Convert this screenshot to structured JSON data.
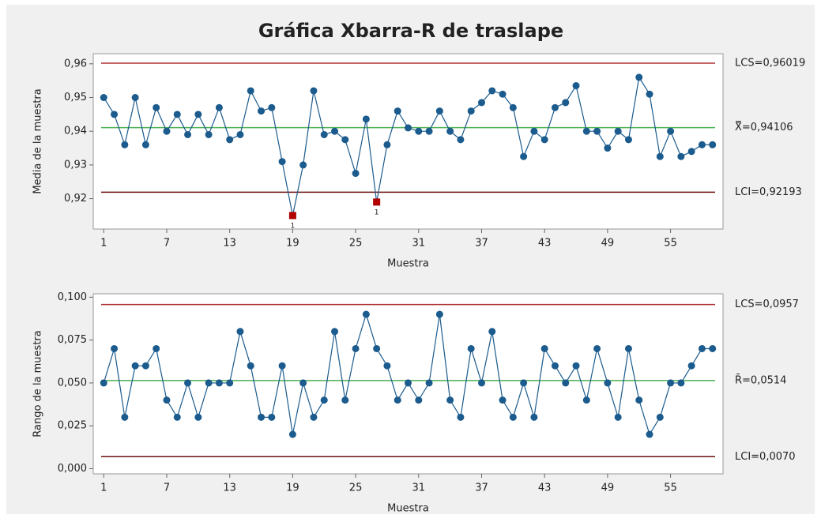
{
  "title": "Gráfica Xbarra-R de traslape",
  "chart_data": [
    {
      "type": "line",
      "ylabel": "Media de la muestra",
      "xlabel": "Muestra",
      "color": "#1b5b8d",
      "x": [
        1,
        2,
        3,
        4,
        5,
        6,
        7,
        8,
        9,
        10,
        11,
        12,
        13,
        14,
        15,
        16,
        17,
        18,
        19,
        20,
        21,
        22,
        23,
        24,
        25,
        26,
        27,
        28,
        29,
        30,
        31,
        32,
        33,
        34,
        35,
        36,
        37,
        38,
        39,
        40,
        41,
        42,
        43,
        44,
        45,
        46,
        47,
        48,
        49,
        50,
        51,
        52,
        53,
        54,
        55,
        56,
        57,
        58,
        59
      ],
      "values": [
        0.95,
        0.945,
        0.936,
        0.95,
        0.936,
        0.947,
        0.94,
        0.945,
        0.939,
        0.945,
        0.939,
        0.947,
        0.9375,
        0.939,
        0.952,
        0.946,
        0.947,
        0.931,
        0.915,
        0.93,
        0.952,
        0.939,
        0.94,
        0.9375,
        0.9275,
        0.9436,
        0.919,
        0.936,
        0.946,
        0.941,
        0.94,
        0.94,
        0.946,
        0.94,
        0.9375,
        0.946,
        0.9485,
        0.952,
        0.951,
        0.947,
        0.9325,
        0.94,
        0.9375,
        0.947,
        0.9485,
        0.9535,
        0.94,
        0.94,
        0.935,
        0.94,
        0.9375,
        0.956,
        0.951,
        0.9325,
        0.94,
        0.9325,
        0.934,
        0.936,
        0.936
      ],
      "flags": [
        {
          "x": 19,
          "label": "1"
        },
        {
          "x": 27,
          "label": "1"
        }
      ],
      "flag_color": "#b00000",
      "xlim": [
        0,
        60
      ],
      "xticks": [
        1,
        7,
        13,
        19,
        25,
        31,
        37,
        43,
        49,
        55
      ],
      "ylim": [
        0.911,
        0.963
      ],
      "yticks": [
        {
          "value": 0.92,
          "label": "0,92"
        },
        {
          "value": 0.93,
          "label": "0,93"
        },
        {
          "value": 0.94,
          "label": "0,94"
        },
        {
          "value": 0.95,
          "label": "0,95"
        },
        {
          "value": 0.96,
          "label": "0,96"
        }
      ],
      "limits": [
        {
          "value": 0.96019,
          "label": "LCS=0,96019",
          "color": "#b03030"
        },
        {
          "value": 0.94106,
          "label": "X̿=0,94106",
          "color": "#4caf50"
        },
        {
          "value": 0.92193,
          "label": "LCI=0,92193",
          "color": "#6b1010"
        }
      ]
    },
    {
      "type": "line",
      "ylabel": "Rango de la muestra",
      "xlabel": "Muestra",
      "color": "#1b5b8d",
      "x": [
        1,
        2,
        3,
        4,
        5,
        6,
        7,
        8,
        9,
        10,
        11,
        12,
        13,
        14,
        15,
        16,
        17,
        18,
        19,
        20,
        21,
        22,
        23,
        24,
        25,
        26,
        27,
        28,
        29,
        30,
        31,
        32,
        33,
        34,
        35,
        36,
        37,
        38,
        39,
        40,
        41,
        42,
        43,
        44,
        45,
        46,
        47,
        48,
        49,
        50,
        51,
        52,
        53,
        54,
        55,
        56,
        57,
        58,
        59
      ],
      "values": [
        0.05,
        0.07,
        0.03,
        0.06,
        0.06,
        0.07,
        0.04,
        0.03,
        0.05,
        0.03,
        0.05,
        0.05,
        0.05,
        0.08,
        0.06,
        0.03,
        0.03,
        0.06,
        0.02,
        0.05,
        0.03,
        0.04,
        0.08,
        0.04,
        0.07,
        0.09,
        0.07,
        0.06,
        0.04,
        0.05,
        0.04,
        0.05,
        0.09,
        0.04,
        0.03,
        0.07,
        0.05,
        0.08,
        0.04,
        0.03,
        0.05,
        0.03,
        0.07,
        0.06,
        0.05,
        0.06,
        0.04,
        0.07,
        0.05,
        0.03,
        0.07,
        0.04,
        0.02,
        0.03,
        0.05,
        0.05,
        0.06,
        0.07,
        0.07
      ],
      "xlim": [
        0,
        60
      ],
      "xticks": [
        1,
        7,
        13,
        19,
        25,
        31,
        37,
        43,
        49,
        55
      ],
      "ylim": [
        -0.003,
        0.102
      ],
      "yticks": [
        {
          "value": 0,
          "label": "0,000"
        },
        {
          "value": 0.025,
          "label": "0,025"
        },
        {
          "value": 0.05,
          "label": "0,050"
        },
        {
          "value": 0.075,
          "label": "0,075"
        },
        {
          "value": 0.1,
          "label": "0,100"
        }
      ],
      "limits": [
        {
          "value": 0.0957,
          "label": "LCS=0,0957",
          "color": "#b03030"
        },
        {
          "value": 0.0514,
          "label": "R̄=0,0514",
          "color": "#4caf50"
        },
        {
          "value": 0.007,
          "label": "LCI=0,0070",
          "color": "#6b1010"
        }
      ]
    }
  ]
}
